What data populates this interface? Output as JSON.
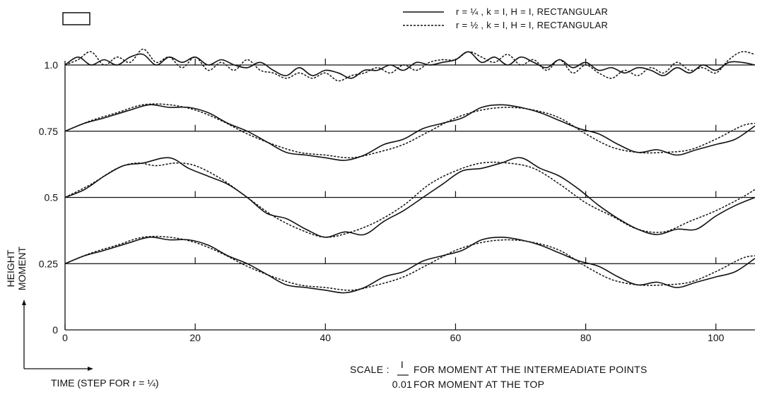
{
  "chart_data": {
    "type": "line",
    "title": "",
    "xlabel": "TIME (STEP FOR r = ¼)",
    "ylabel": "HEIGHT",
    "ylabel2": "MOMENT",
    "xlim": [
      0,
      106
    ],
    "ylim": [
      0,
      1.0
    ],
    "grid": false,
    "legend_position": "top-right",
    "x_ticks": [
      0,
      20,
      40,
      60,
      80,
      100
    ],
    "x_tick_labels": [
      "0",
      "20",
      "40",
      "60",
      "80",
      "100"
    ],
    "y_ticks": [
      0,
      0.25,
      0.5,
      0.75,
      1.0
    ],
    "y_tick_labels": [
      "0",
      "0.25",
      "0.5",
      "0.75",
      "1.0"
    ],
    "baselines": [
      0.25,
      0.5,
      0.75,
      1.0
    ],
    "series": [
      {
        "name": "r = ¼ , k = I, H = I, RECTANGULAR",
        "style": "solid",
        "heights": [
          {
            "baseline": 0.25,
            "x": [
              0,
              3,
              6,
              10,
              13,
              16,
              19,
              22,
              25,
              28,
              31,
              34,
              37,
              40,
              43,
              46,
              49,
              52,
              55,
              58,
              61,
              64,
              67,
              70,
              73,
              76,
              79,
              82,
              85,
              88,
              91,
              94,
              97,
              100,
              103,
              106
            ],
            "y": [
              0.25,
              0.28,
              0.3,
              0.33,
              0.35,
              0.34,
              0.34,
              0.32,
              0.28,
              0.25,
              0.21,
              0.17,
              0.16,
              0.15,
              0.14,
              0.16,
              0.2,
              0.22,
              0.26,
              0.28,
              0.3,
              0.34,
              0.35,
              0.34,
              0.32,
              0.29,
              0.26,
              0.24,
              0.2,
              0.17,
              0.18,
              0.16,
              0.18,
              0.2,
              0.22,
              0.27
            ]
          },
          {
            "baseline": 0.5,
            "x": [
              0,
              3,
              6,
              9,
              12,
              16,
              19,
              22,
              25,
              28,
              31,
              34,
              37,
              40,
              43,
              46,
              49,
              52,
              55,
              58,
              61,
              64,
              67,
              70,
              73,
              76,
              79,
              82,
              85,
              88,
              91,
              94,
              97,
              100,
              103,
              106
            ],
            "y": [
              0.5,
              0.53,
              0.58,
              0.62,
              0.63,
              0.65,
              0.61,
              0.58,
              0.55,
              0.5,
              0.44,
              0.42,
              0.38,
              0.35,
              0.37,
              0.36,
              0.41,
              0.45,
              0.5,
              0.55,
              0.6,
              0.61,
              0.63,
              0.65,
              0.61,
              0.58,
              0.53,
              0.47,
              0.42,
              0.38,
              0.36,
              0.38,
              0.38,
              0.43,
              0.47,
              0.5
            ]
          },
          {
            "baseline": 0.75,
            "x": [
              0,
              3,
              6,
              10,
              13,
              16,
              19,
              22,
              25,
              28,
              31,
              34,
              37,
              40,
              43,
              46,
              49,
              52,
              55,
              58,
              61,
              64,
              67,
              70,
              73,
              76,
              79,
              82,
              85,
              88,
              91,
              94,
              97,
              100,
              103,
              106
            ],
            "y": [
              0.75,
              0.78,
              0.8,
              0.83,
              0.85,
              0.84,
              0.84,
              0.82,
              0.78,
              0.75,
              0.71,
              0.67,
              0.66,
              0.65,
              0.64,
              0.66,
              0.7,
              0.72,
              0.76,
              0.78,
              0.8,
              0.84,
              0.85,
              0.84,
              0.82,
              0.79,
              0.76,
              0.74,
              0.7,
              0.67,
              0.68,
              0.66,
              0.68,
              0.7,
              0.72,
              0.77
            ]
          },
          {
            "baseline": 1.0,
            "x": [
              0,
              2,
              4,
              6,
              8,
              10,
              12,
              14,
              16,
              18,
              20,
              22,
              24,
              26,
              28,
              30,
              32,
              34,
              36,
              38,
              40,
              42,
              44,
              46,
              48,
              50,
              52,
              54,
              56,
              58,
              60,
              62,
              64,
              66,
              68,
              70,
              72,
              74,
              76,
              78,
              80,
              82,
              84,
              86,
              88,
              90,
              92,
              94,
              96,
              98,
              100,
              102,
              104,
              106
            ],
            "y": [
              1.0,
              1.03,
              1.0,
              1.02,
              1.0,
              1.03,
              1.04,
              1.0,
              1.03,
              1.01,
              1.03,
              1.0,
              1.02,
              1.0,
              0.99,
              1.01,
              0.98,
              0.96,
              0.99,
              0.96,
              0.98,
              0.97,
              0.95,
              0.98,
              0.98,
              1.0,
              0.98,
              1.01,
              1.0,
              1.01,
              1.02,
              1.05,
              1.01,
              1.03,
              1.0,
              1.03,
              1.01,
              0.99,
              1.02,
              0.99,
              1.01,
              0.98,
              0.99,
              0.97,
              0.99,
              0.98,
              0.96,
              0.99,
              0.97,
              1.0,
              0.98,
              1.01,
              1.01,
              1.0
            ]
          }
        ]
      },
      {
        "name": "r = ½ , k = I, H = I, RECTANGULAR",
        "style": "dashed",
        "heights": [
          {
            "baseline": 0.25,
            "x": [
              0,
              4,
              8,
              12,
              16,
              20,
              24,
              28,
              32,
              36,
              40,
              44,
              48,
              52,
              56,
              60,
              64,
              68,
              72,
              76,
              80,
              84,
              88,
              92,
              96,
              100,
              104,
              106
            ],
            "y": [
              0.25,
              0.29,
              0.32,
              0.35,
              0.35,
              0.33,
              0.29,
              0.24,
              0.2,
              0.17,
              0.16,
              0.15,
              0.17,
              0.2,
              0.25,
              0.3,
              0.33,
              0.34,
              0.33,
              0.3,
              0.24,
              0.19,
              0.17,
              0.17,
              0.18,
              0.22,
              0.27,
              0.28
            ]
          },
          {
            "baseline": 0.5,
            "x": [
              0,
              4,
              8,
              11,
              14,
              17,
              20,
              24,
              28,
              32,
              36,
              40,
              44,
              48,
              52,
              56,
              60,
              64,
              68,
              72,
              76,
              80,
              84,
              88,
              92,
              96,
              100,
              104,
              106
            ],
            "y": [
              0.5,
              0.55,
              0.61,
              0.63,
              0.62,
              0.63,
              0.62,
              0.57,
              0.5,
              0.43,
              0.38,
              0.35,
              0.37,
              0.41,
              0.47,
              0.55,
              0.6,
              0.63,
              0.63,
              0.61,
              0.55,
              0.48,
              0.43,
              0.38,
              0.37,
              0.41,
              0.45,
              0.5,
              0.53
            ]
          },
          {
            "baseline": 0.75,
            "x": [
              0,
              4,
              8,
              12,
              16,
              20,
              24,
              28,
              32,
              36,
              40,
              44,
              48,
              52,
              56,
              60,
              64,
              68,
              72,
              76,
              80,
              84,
              88,
              92,
              96,
              100,
              104,
              106
            ],
            "y": [
              0.75,
              0.79,
              0.82,
              0.85,
              0.85,
              0.83,
              0.79,
              0.74,
              0.7,
              0.67,
              0.66,
              0.65,
              0.67,
              0.7,
              0.75,
              0.8,
              0.83,
              0.84,
              0.83,
              0.8,
              0.74,
              0.69,
              0.67,
              0.67,
              0.68,
              0.72,
              0.77,
              0.78
            ]
          },
          {
            "baseline": 1.0,
            "x": [
              0,
              2,
              4,
              6,
              8,
              10,
              12,
              14,
              16,
              18,
              20,
              22,
              24,
              26,
              28,
              30,
              32,
              34,
              36,
              38,
              40,
              42,
              44,
              46,
              48,
              50,
              52,
              54,
              56,
              58,
              60,
              62,
              64,
              66,
              68,
              70,
              72,
              74,
              76,
              78,
              80,
              82,
              84,
              86,
              88,
              90,
              92,
              94,
              96,
              98,
              100,
              102,
              104,
              106
            ],
            "y": [
              1.0,
              1.02,
              1.05,
              1.0,
              1.03,
              1.01,
              1.06,
              1.01,
              1.03,
              0.99,
              1.03,
              0.98,
              1.01,
              0.98,
              1.02,
              0.98,
              0.97,
              0.95,
              0.97,
              0.95,
              0.97,
              0.94,
              0.96,
              0.97,
              0.99,
              0.97,
              1.0,
              0.98,
              1.01,
              1.02,
              1.02,
              1.05,
              1.03,
              1.01,
              1.04,
              1.0,
              1.02,
              0.98,
              1.02,
              0.97,
              1.0,
              0.97,
              0.95,
              0.98,
              0.96,
              0.99,
              0.97,
              1.01,
              0.98,
              0.99,
              0.97,
              1.02,
              1.05,
              1.04
            ]
          }
        ]
      }
    ],
    "legend_extra_box": true,
    "scale_note": {
      "prefix": "SCALE :",
      "unit_top": "I",
      "line1": "FOR MOMENT AT THE INTERMEADIATE POINTS",
      "unit_bottom": "0.01",
      "line2": "FOR MOMENT AT  THE  TOP"
    }
  }
}
